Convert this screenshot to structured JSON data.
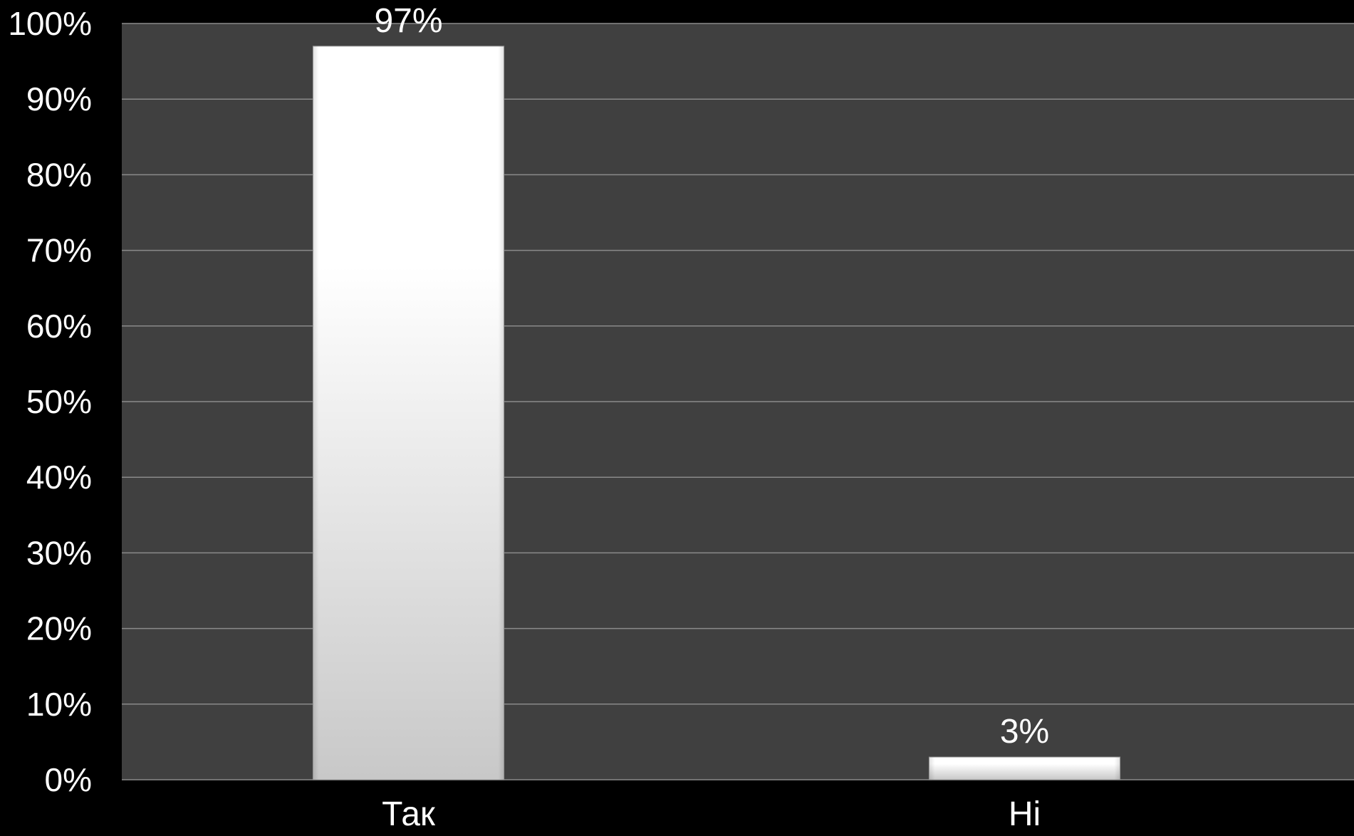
{
  "chart_data": {
    "type": "bar",
    "categories": [
      "Так",
      "Ні"
    ],
    "values": [
      97,
      3
    ],
    "data_labels": [
      "97%",
      "3%"
    ],
    "title": "",
    "xlabel": "",
    "ylabel": "",
    "ylim": [
      0,
      100
    ],
    "ytick_step": 10,
    "ytick_labels": [
      "0%",
      "10%",
      "20%",
      "30%",
      "40%",
      "50%",
      "60%",
      "70%",
      "80%",
      "90%",
      "100%"
    ],
    "grid": true,
    "legend": "none",
    "colors": {
      "page_background": "#000000",
      "plot_background": "#404040",
      "gridline": "#8a8a8a",
      "bar_top": "#ffffff",
      "bar_bottom": "#c8c8c8",
      "text": "#ffffff"
    }
  }
}
